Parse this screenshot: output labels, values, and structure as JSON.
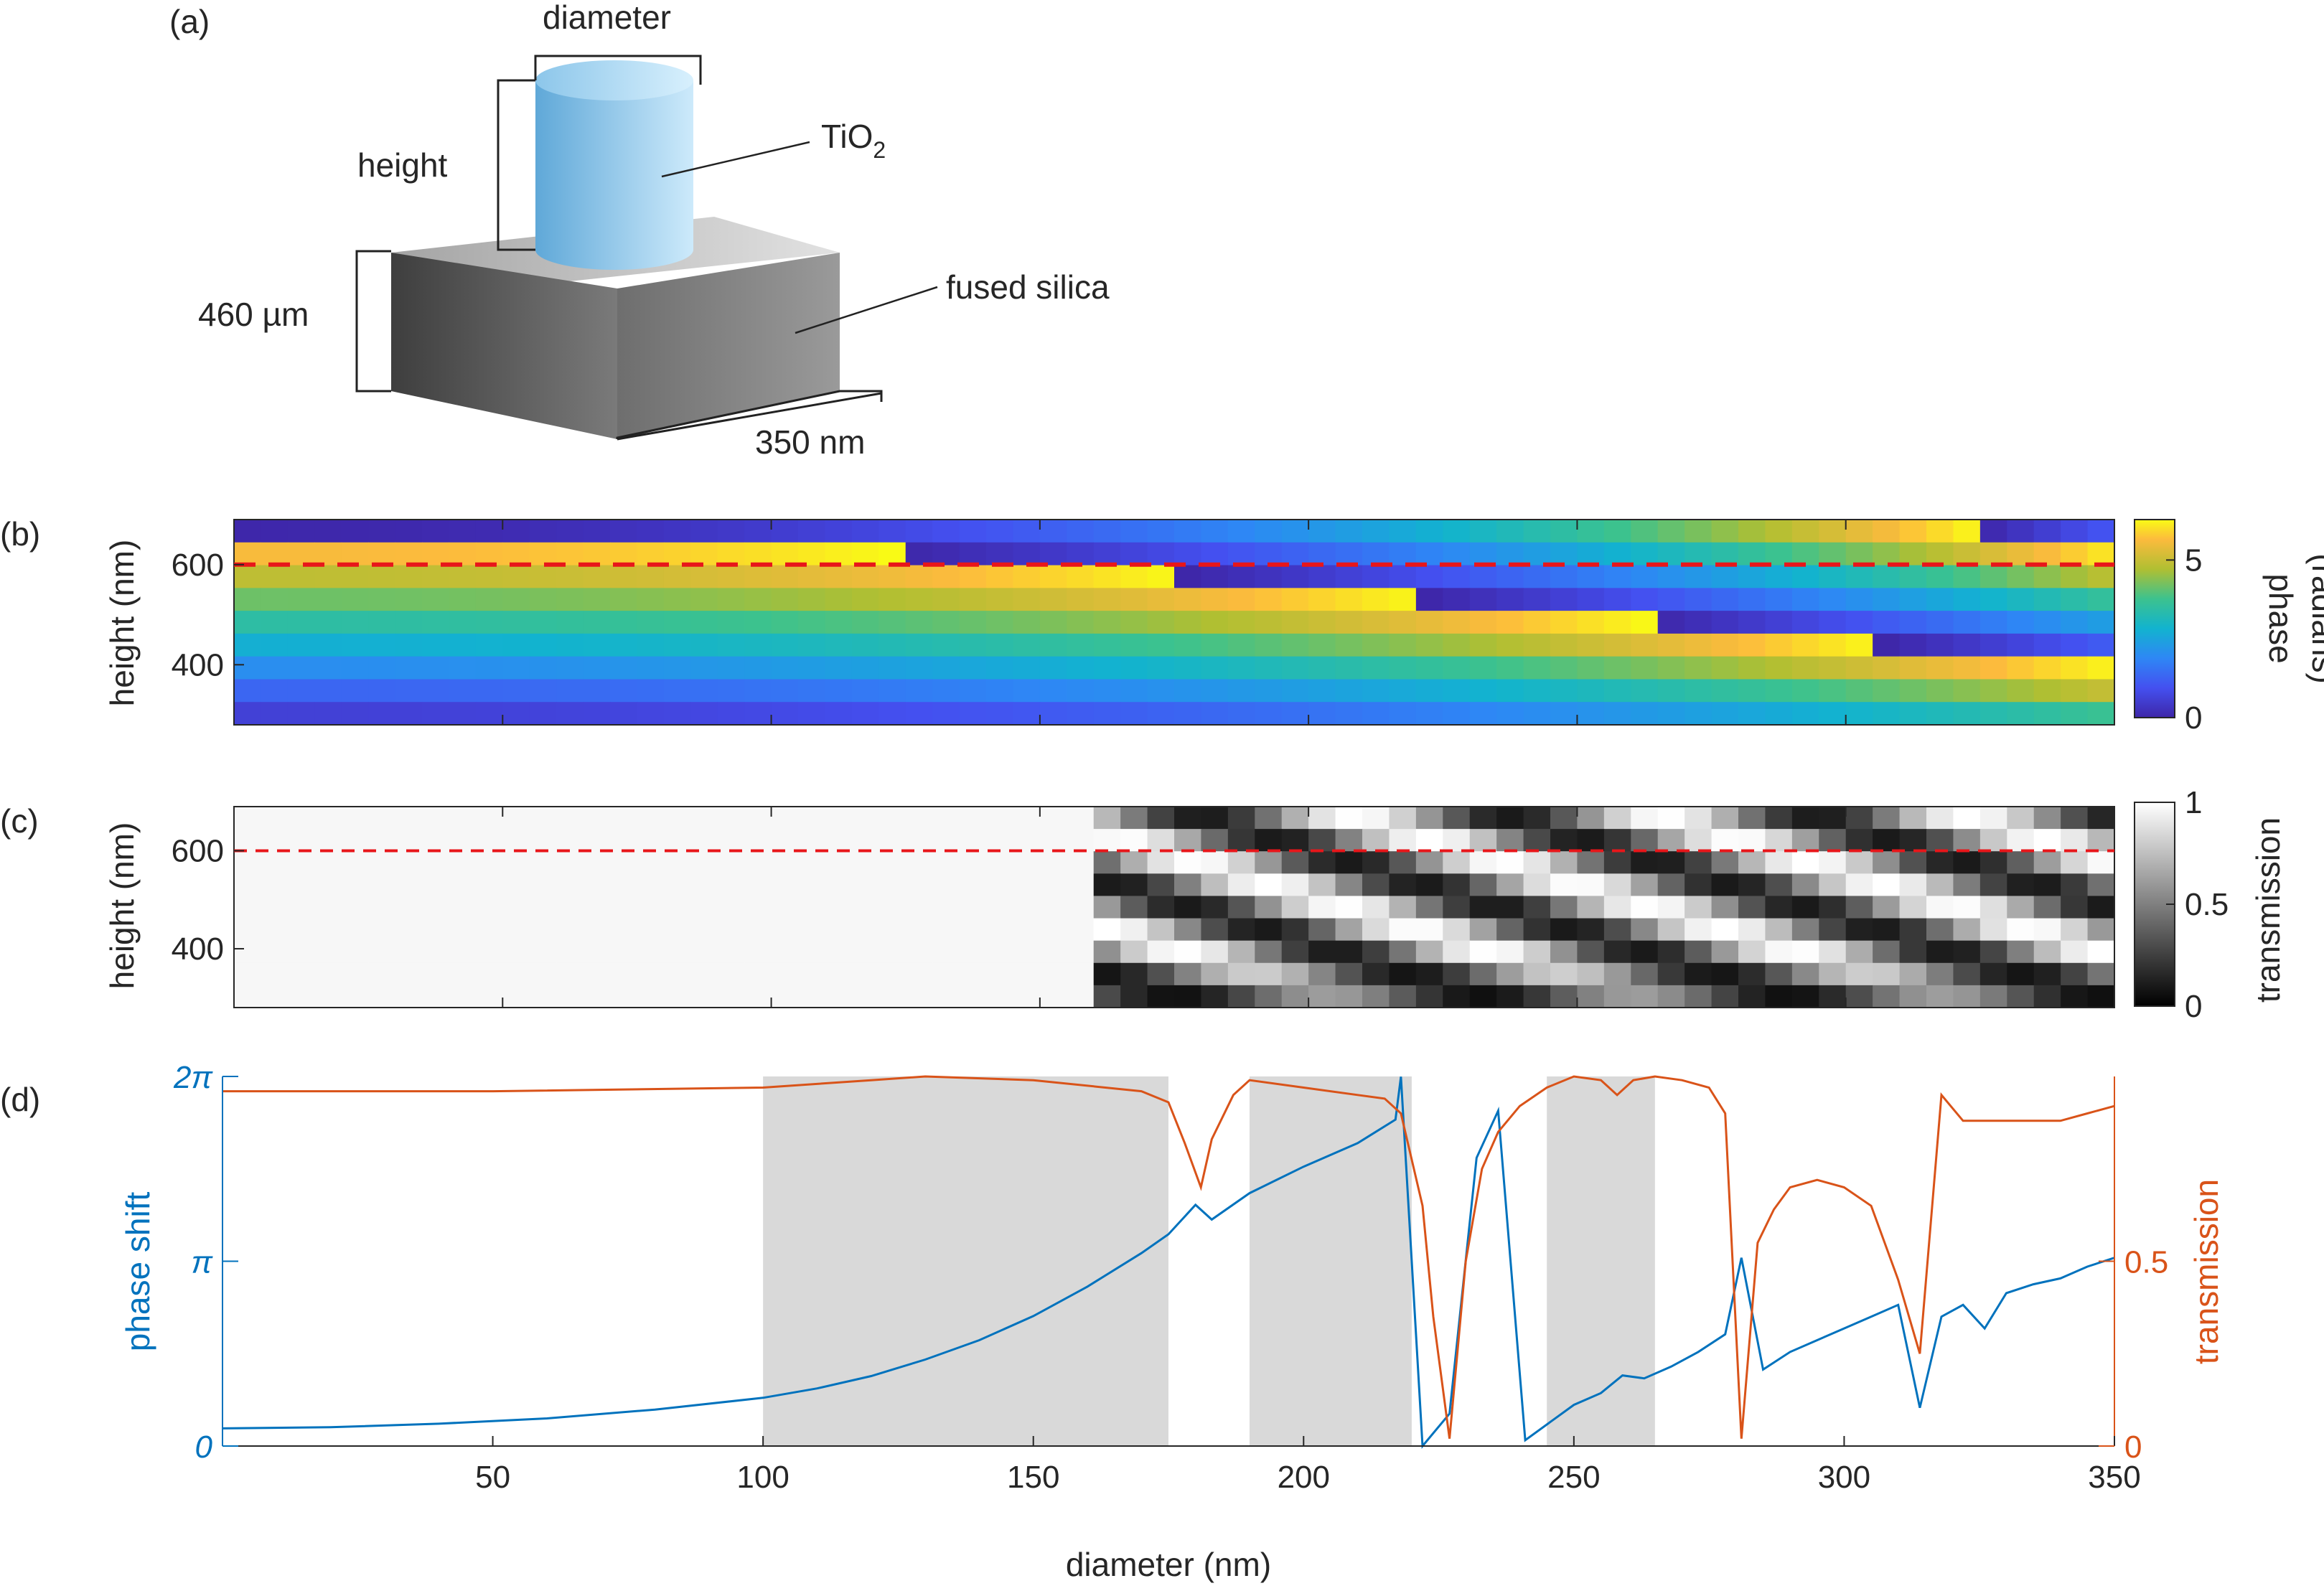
{
  "panel_a": {
    "label": "(a)",
    "diameter": "diameter",
    "height": "height",
    "tio2_base": "TiO",
    "tio2_sub": "2",
    "substrate": "fused silica",
    "thickness": "460 µm",
    "period": "350 nm",
    "colors": {
      "pillar_light": "#c9e8fa",
      "pillar_dark": "#5fa8d8",
      "block_top": "#b8b8b8",
      "block_front": "#5a5a5a",
      "block_side": "#8a8a8a"
    }
  },
  "chart_data": [
    {
      "panel": "(b)",
      "type": "heatmap",
      "ylabel": "height (nm)",
      "colorbar_label_1": "phase",
      "colorbar_label_2": "(radians)",
      "yticks": [
        400,
        600
      ],
      "xticks": [
        50,
        100,
        150,
        200,
        250,
        300,
        350
      ],
      "xlim": [
        0,
        350
      ],
      "ylim": [
        280,
        690
      ],
      "colorbar_ticks": [
        0,
        5
      ],
      "colorbar_range": [
        0,
        6.283
      ],
      "colormap": "parula",
      "reference_line_height": 600,
      "reference_line_color": "#e8161a"
    },
    {
      "panel": "(c)",
      "type": "heatmap",
      "ylabel": "height (nm)",
      "colorbar_label": "transmission",
      "yticks": [
        400,
        600
      ],
      "xticks": [
        50,
        100,
        150,
        200,
        250,
        300,
        350
      ],
      "xlim": [
        0,
        350
      ],
      "ylim": [
        280,
        690
      ],
      "colorbar_ticks": [
        "0",
        "0.5",
        "1"
      ],
      "colorbar_range": [
        0,
        1
      ],
      "colormap": "gray",
      "reference_line_height": 600,
      "reference_line_color": "#e8161a"
    },
    {
      "panel": "(d)",
      "type": "line",
      "xlabel": "diameter (nm)",
      "ylabel_left": "phase shift",
      "ylabel_right": "transmission",
      "xlim": [
        0,
        350
      ],
      "xticks": [
        50,
        100,
        150,
        200,
        250,
        300,
        350
      ],
      "left_ticks": [
        {
          "v": 0,
          "t": "0"
        },
        {
          "v": 3.1416,
          "t": "π"
        },
        {
          "v": 6.2832,
          "t": "2π"
        }
      ],
      "right_ticks": [
        {
          "v": 0,
          "t": "0"
        },
        {
          "v": 0.5,
          "t": "0.5"
        }
      ],
      "left_ylim": [
        0,
        6.2832
      ],
      "right_ylim": [
        0,
        1
      ],
      "shaded_ranges": [
        [
          100,
          175
        ],
        [
          190,
          220
        ],
        [
          245,
          265
        ]
      ],
      "series": [
        {
          "axis": "left",
          "color": "#0072bd",
          "x": [
            0,
            20,
            40,
            60,
            80,
            100,
            110,
            120,
            130,
            140,
            150,
            160,
            170,
            175,
            180,
            183,
            190,
            200,
            210,
            217,
            218,
            222,
            227,
            232,
            236,
            241,
            250,
            255,
            259,
            263,
            268,
            273,
            278,
            281,
            285,
            290,
            295,
            300,
            305,
            310,
            314,
            318,
            322,
            326,
            330,
            335,
            340,
            345,
            350
          ],
          "y": [
            0.3,
            0.32,
            0.38,
            0.47,
            0.62,
            0.82,
            0.98,
            1.19,
            1.47,
            1.8,
            2.21,
            2.71,
            3.28,
            3.6,
            4.1,
            3.85,
            4.3,
            4.75,
            5.15,
            5.55,
            6.28,
            0.0,
            0.55,
            4.9,
            5.7,
            0.1,
            0.7,
            0.9,
            1.2,
            1.15,
            1.35,
            1.6,
            1.9,
            3.2,
            1.3,
            1.6,
            1.8,
            2.0,
            2.2,
            2.4,
            0.65,
            2.2,
            2.4,
            2.0,
            2.6,
            2.75,
            2.85,
            3.05,
            3.2
          ]
        },
        {
          "axis": "right",
          "color": "#d95319",
          "x": [
            0,
            50,
            100,
            120,
            130,
            150,
            170,
            175,
            178,
            181,
            183,
            187,
            190,
            200,
            210,
            215,
            218,
            222,
            224,
            227,
            230,
            233,
            236,
            240,
            245,
            250,
            255,
            258,
            261,
            265,
            270,
            275,
            278,
            281,
            284,
            287,
            290,
            295,
            300,
            305,
            310,
            314,
            318,
            322,
            326,
            330,
            335,
            340,
            345,
            350
          ],
          "y": [
            0.96,
            0.96,
            0.97,
            0.99,
            1.0,
            0.99,
            0.96,
            0.93,
            0.82,
            0.7,
            0.83,
            0.95,
            0.99,
            0.97,
            0.95,
            0.94,
            0.9,
            0.65,
            0.35,
            0.02,
            0.5,
            0.75,
            0.85,
            0.92,
            0.97,
            1.0,
            0.99,
            0.95,
            0.99,
            1.0,
            0.99,
            0.97,
            0.9,
            0.02,
            0.55,
            0.64,
            0.7,
            0.72,
            0.7,
            0.65,
            0.45,
            0.25,
            0.95,
            0.88,
            0.88,
            0.88,
            0.88,
            0.88,
            0.9,
            0.92
          ]
        }
      ]
    }
  ]
}
